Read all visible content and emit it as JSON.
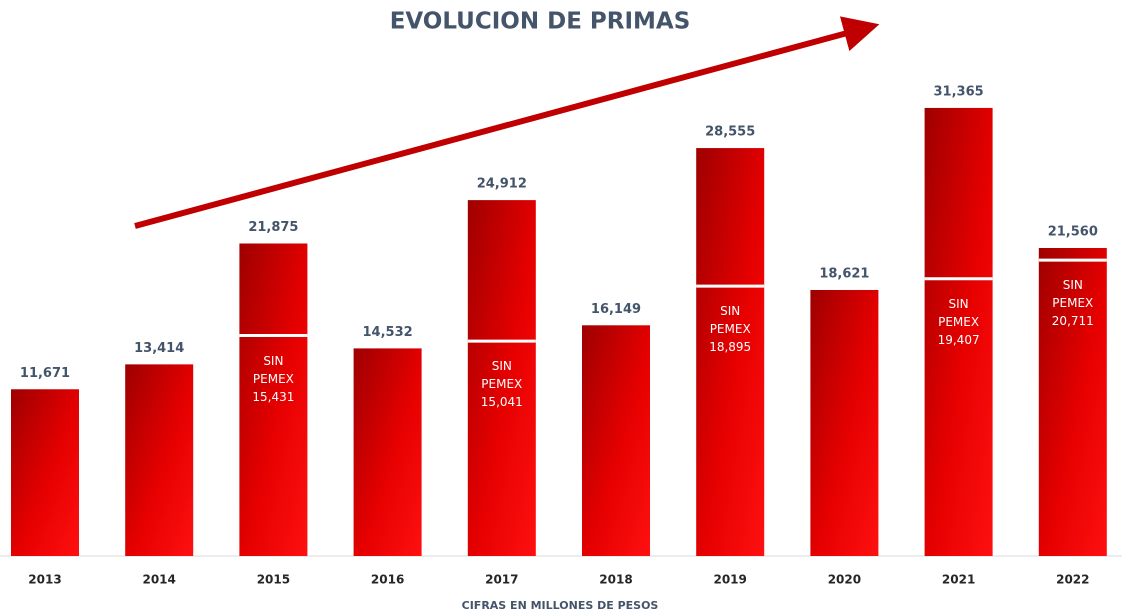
{
  "chart_data": {
    "type": "bar",
    "title": "EVOLUCION DE PRIMAS",
    "x_label": "CIFRAS EN MILLONES DE PESOS",
    "categories": [
      "2013",
      "2014",
      "2015",
      "2016",
      "2017",
      "2018",
      "2019",
      "2020",
      "2021",
      "2022"
    ],
    "values": [
      11671,
      13414,
      21875,
      14532,
      24912,
      16149,
      28555,
      18621,
      31365,
      21560
    ],
    "value_labels": [
      "11,671",
      "13,414",
      "21,875",
      "14,532",
      "24,912",
      "16,149",
      "28,555",
      "18,621",
      "31,365",
      "21,560"
    ],
    "inner_label": "SIN PEMEX",
    "inner_values": [
      null,
      null,
      15431,
      null,
      15041,
      null,
      18895,
      null,
      19407,
      20711
    ],
    "inner_value_labels": [
      null,
      null,
      "15,431",
      null,
      "15,041",
      null,
      "18,895",
      null,
      "19,407",
      "20,711"
    ],
    "color": "#e60000",
    "ylim": [
      0,
      35000
    ]
  }
}
